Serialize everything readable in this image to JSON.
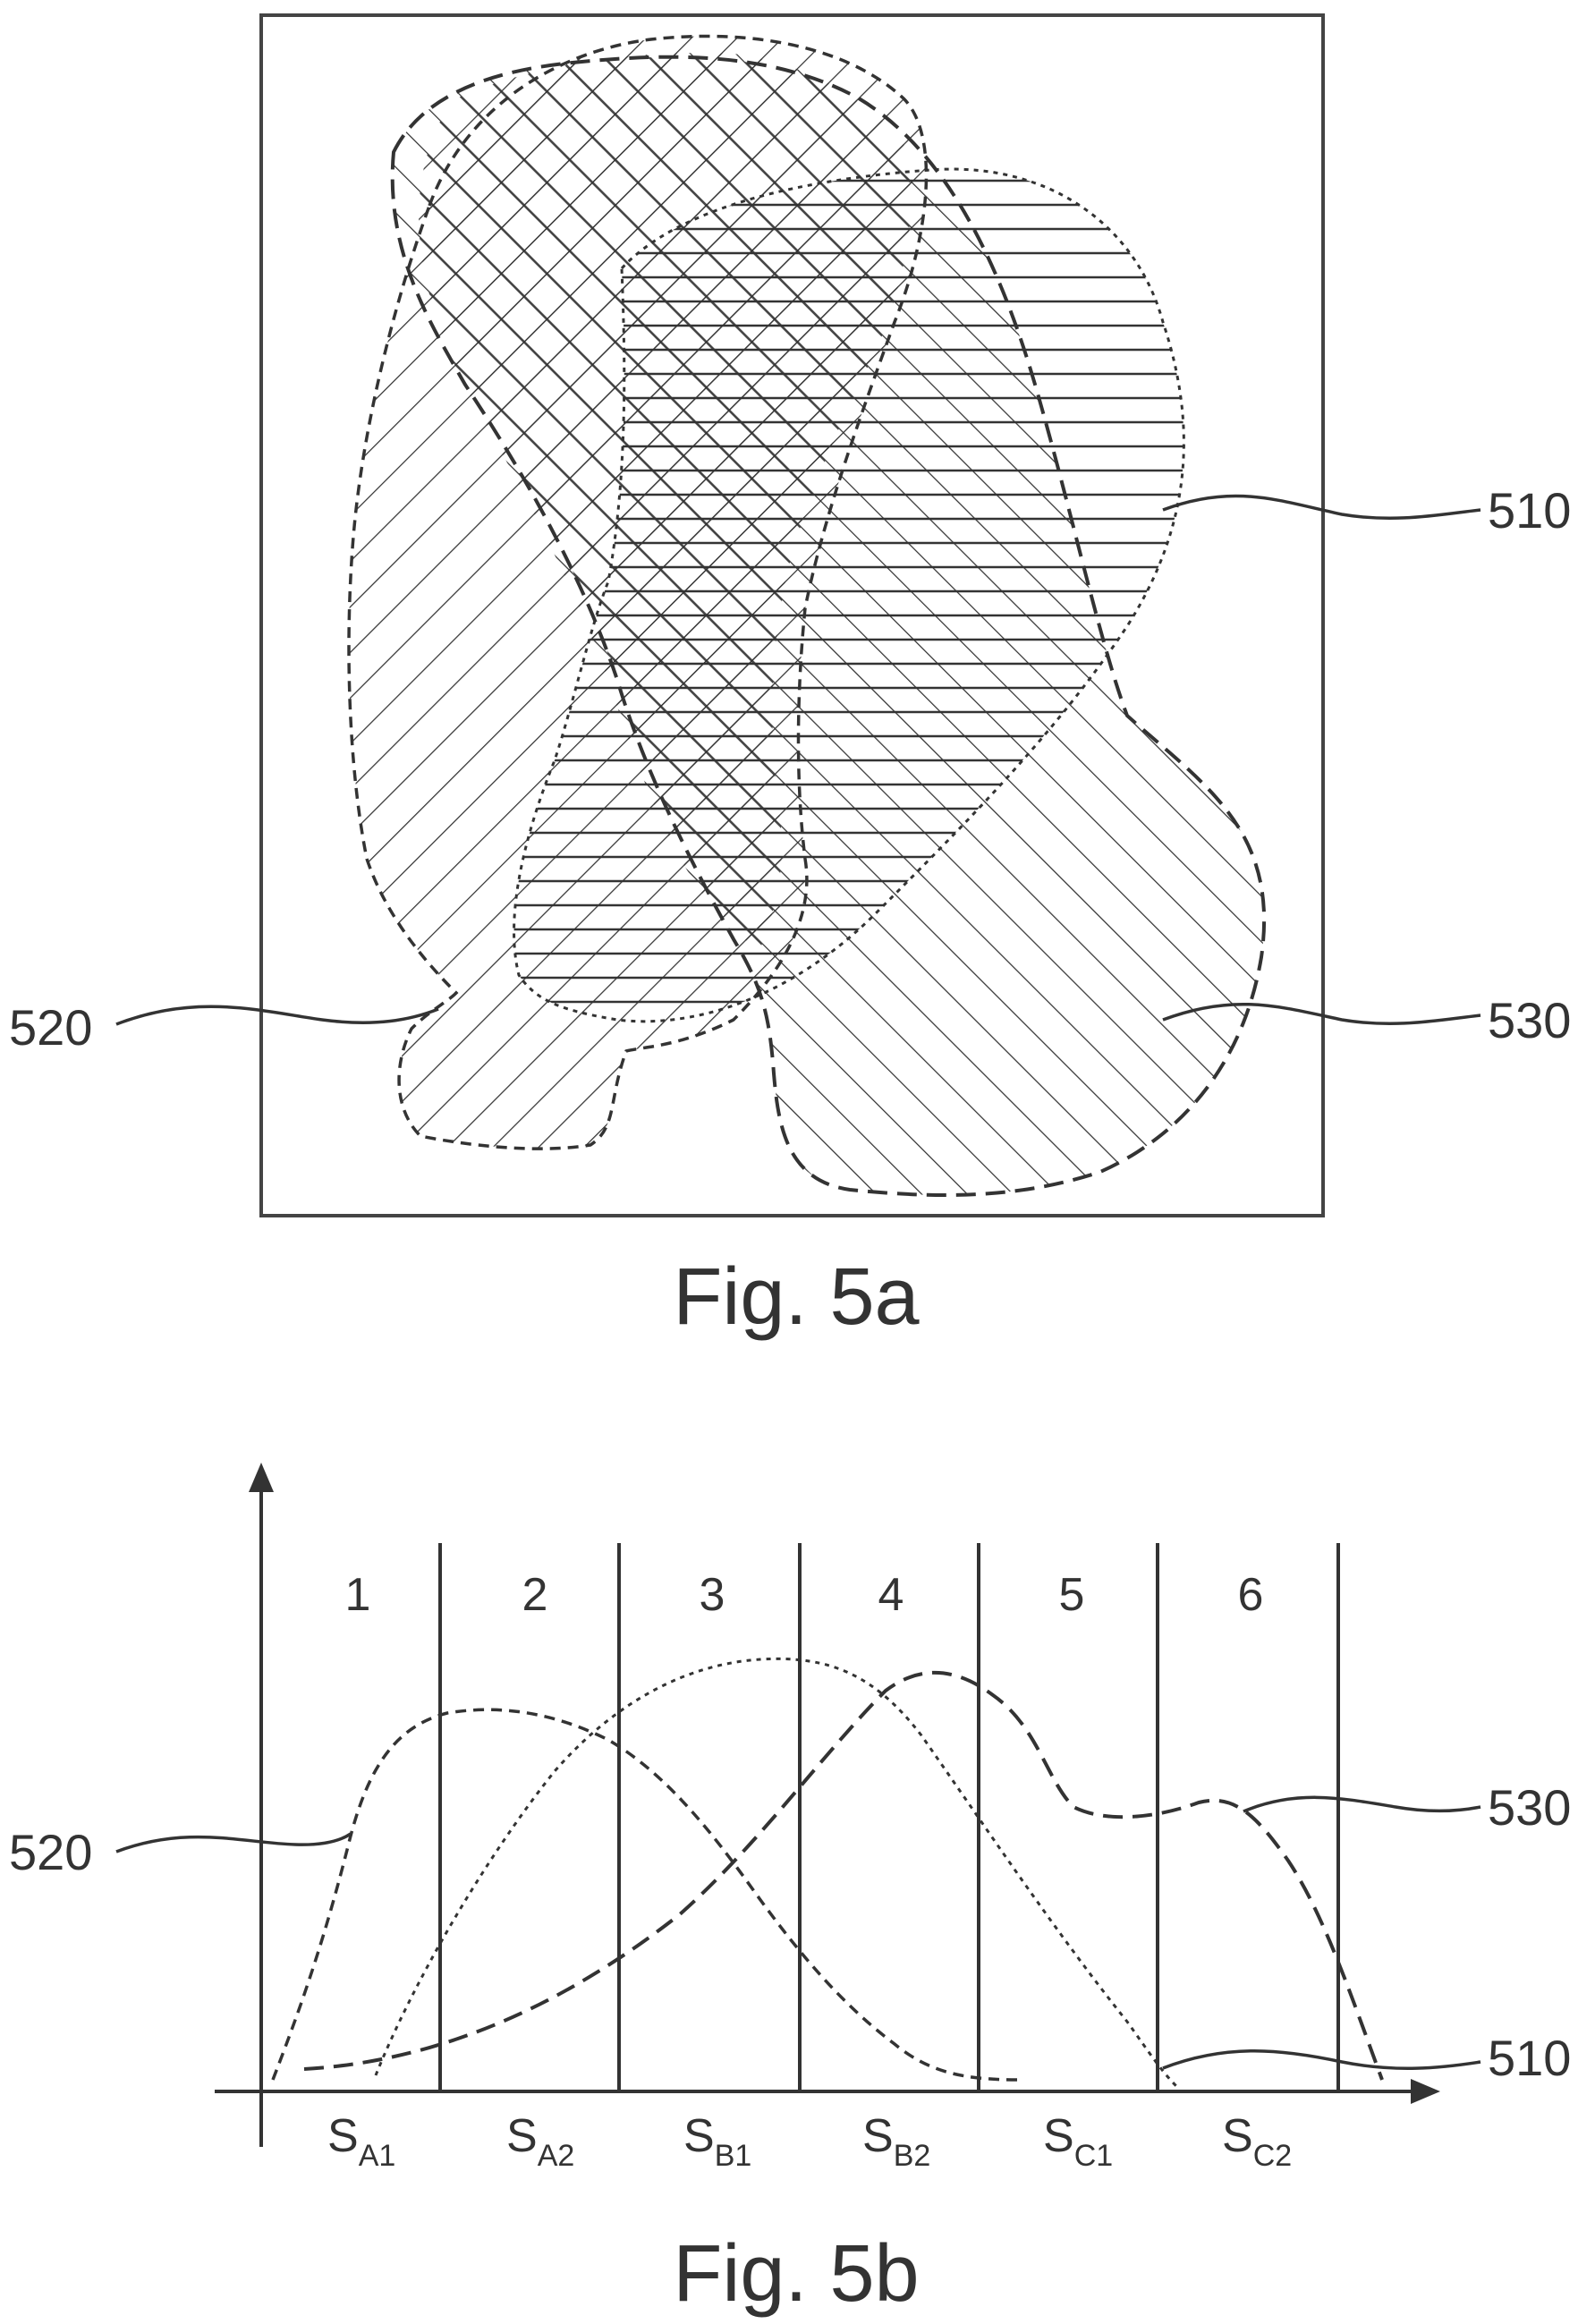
{
  "fig_a": {
    "caption": "Fig. 5a",
    "labels": {
      "r510": "510",
      "r520": "520",
      "r530": "530"
    }
  },
  "fig_b": {
    "caption": "Fig. 5b",
    "labels": {
      "r510": "510",
      "r520": "520",
      "r530": "530"
    },
    "segments": [
      {
        "number": "1",
        "base": "S",
        "sub": "A1"
      },
      {
        "number": "2",
        "base": "S",
        "sub": "A2"
      },
      {
        "number": "3",
        "base": "S",
        "sub": "B1"
      },
      {
        "number": "4",
        "base": "S",
        "sub": "B2"
      },
      {
        "number": "5",
        "base": "S",
        "sub": "C1"
      },
      {
        "number": "6",
        "base": "S",
        "sub": "C2"
      }
    ]
  }
}
